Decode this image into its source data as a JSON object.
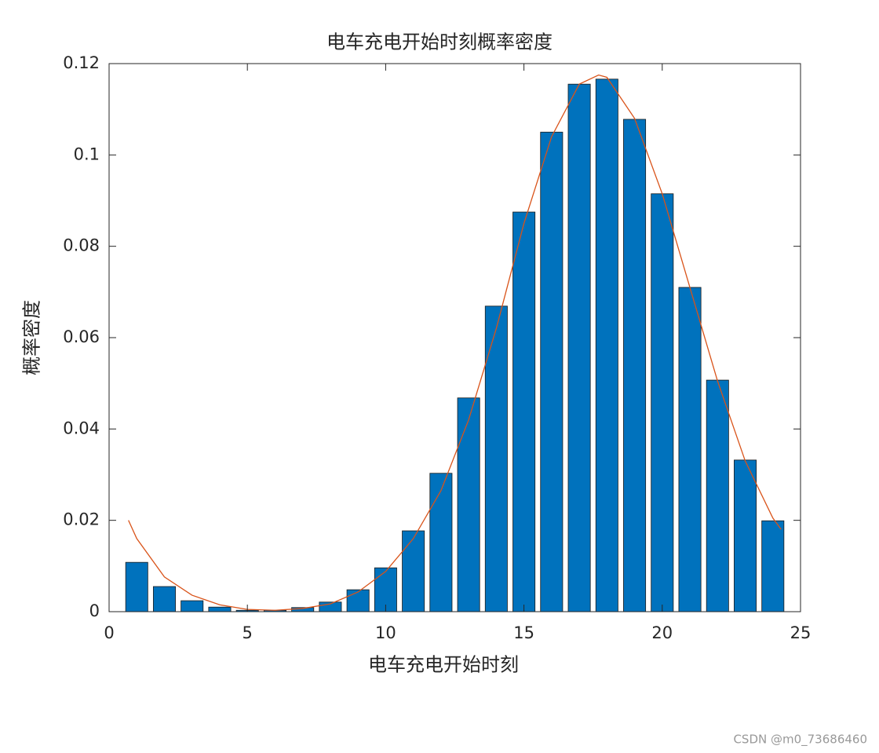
{
  "chart_data": {
    "type": "bar",
    "title": "电车充电开始时刻概率密度",
    "xlabel": "电车充电开始时刻",
    "ylabel": "概率密度",
    "x": [
      1,
      2,
      3,
      4,
      5,
      6,
      7,
      8,
      9,
      10,
      11,
      12,
      13,
      14,
      15,
      16,
      17,
      18,
      19,
      20,
      21,
      22,
      23,
      24
    ],
    "values": [
      0.0108,
      0.0055,
      0.0024,
      0.001,
      0.0003,
      0.0003,
      0.0009,
      0.0021,
      0.0048,
      0.0096,
      0.0177,
      0.0303,
      0.0468,
      0.0669,
      0.0875,
      0.105,
      0.1155,
      0.1166,
      0.1078,
      0.0915,
      0.071,
      0.0507,
      0.0332,
      0.0199
    ],
    "color": "#0072bd",
    "line": {
      "type": "line",
      "color": "#d95319",
      "x": [
        0.7,
        1,
        2,
        3,
        4,
        5,
        6,
        7,
        8,
        9,
        10,
        11,
        12,
        13,
        14,
        15,
        16,
        17,
        17.7,
        18,
        19,
        20,
        21,
        22,
        23,
        24,
        24.3
      ],
      "values": [
        0.02,
        0.016,
        0.0076,
        0.0036,
        0.0015,
        0.0005,
        0.0003,
        0.0007,
        0.0017,
        0.0043,
        0.0088,
        0.016,
        0.0265,
        0.042,
        0.062,
        0.085,
        0.104,
        0.1155,
        0.1175,
        0.117,
        0.108,
        0.0915,
        0.071,
        0.0505,
        0.033,
        0.0205,
        0.018
      ]
    },
    "xlim": [
      0,
      25
    ],
    "xticks": [
      0,
      5,
      10,
      15,
      20,
      25
    ],
    "ylim": [
      0,
      0.12
    ],
    "yticks": [
      0,
      0.02,
      0.04,
      0.06,
      0.08,
      0.1,
      0.12
    ],
    "grid": false,
    "watermark": "CSDN @m0_73686460"
  }
}
